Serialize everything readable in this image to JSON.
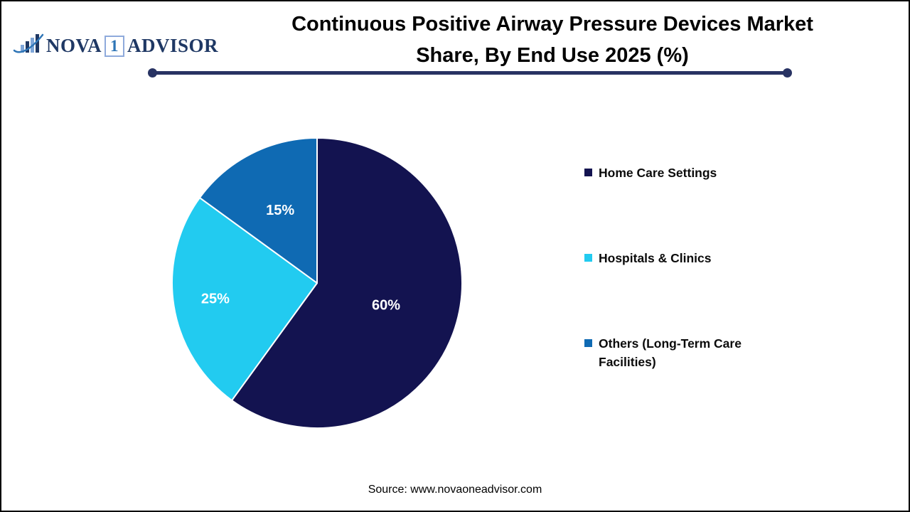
{
  "logo": {
    "part1": "NOVA",
    "part2": "1",
    "part3": "ADVISOR"
  },
  "header": {
    "title_line1": "Continuous Positive Airway Pressure Devices Market",
    "title_line2": "Share, By End Use 2025 (%)"
  },
  "footer": {
    "source": "Source: www.novaoneadvisor.com"
  },
  "colors": {
    "divider": "#283363",
    "logo_navy": "#1f3864",
    "logo_light_blue": "#7ea6d9",
    "logo_one_blue": "#2e75b6",
    "title_text": "#000000",
    "legend_text": "#0b0b0b"
  },
  "chart_data": {
    "type": "pie",
    "title": "Continuous Positive Airway Pressure Devices Market Share, By End Use 2025 (%)",
    "categories": [
      "Home Care Settings",
      "Hospitals & Clinics",
      "Others (Long-Term Care Facilities)"
    ],
    "values": [
      60,
      25,
      15
    ],
    "unit": "%",
    "colors": [
      "#131350",
      "#22cbf0",
      "#0f6ab3"
    ],
    "start_angle_deg": 0,
    "direction": "clockwise",
    "slice_border_color": "#ffffff",
    "slice_label_color": "#ffffff",
    "slice_label_radius_frac": [
      0.5,
      0.71,
      0.56
    ],
    "legend_position": "right",
    "source": "Source: www.novaoneadvisor.com"
  }
}
